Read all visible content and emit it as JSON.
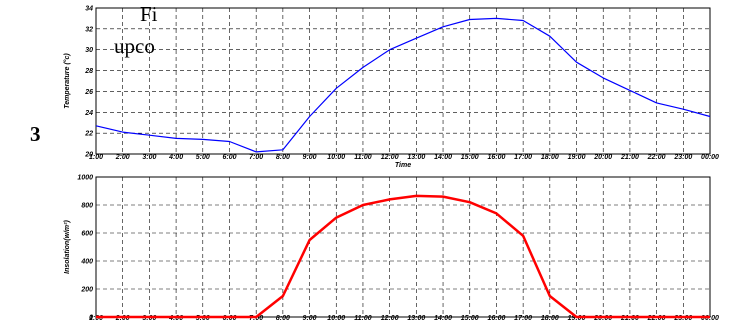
{
  "background_text": [
    "Fi",
    "upco",
    "3"
  ],
  "chart_data": [
    {
      "type": "line",
      "xlabel": "Time",
      "ylabel": "Temperature (°c)",
      "categories": [
        "1:00",
        "2:00",
        "3:00",
        "4:00",
        "5:00",
        "6:00",
        "7:00",
        "8:00",
        "9:00",
        "10:00",
        "11:00",
        "12:00",
        "13:00",
        "14:00",
        "15:00",
        "16:00",
        "17:00",
        "18:00",
        "19:00",
        "20:00",
        "21:00",
        "22:00",
        "23:00",
        "00:00"
      ],
      "ylim": [
        20,
        34
      ],
      "yticks": [
        20,
        22,
        24,
        26,
        28,
        30,
        32,
        34
      ],
      "grid": true,
      "series": [
        {
          "color": "#0000ff",
          "values": [
            22.7,
            22.1,
            21.8,
            21.5,
            21.4,
            21.2,
            20.2,
            20.4,
            23.6,
            26.3,
            28.3,
            30.0,
            31.1,
            32.2,
            32.9,
            33.0,
            32.8,
            31.3,
            28.8,
            27.3,
            26.1,
            24.9,
            24.3,
            23.6
          ]
        }
      ]
    },
    {
      "type": "line",
      "xlabel": "",
      "ylabel": "Insolation(w/m²)",
      "categories": [
        "1:00",
        "2:00",
        "3:00",
        "4:00",
        "5:00",
        "6:00",
        "7:00",
        "8:00",
        "9:00",
        "10:00",
        "11:00",
        "12:00",
        "13:00",
        "14:00",
        "15:00",
        "16:00",
        "17:00",
        "18:00",
        "19:00",
        "20:00",
        "21:00",
        "22:00",
        "23:00",
        "00:00"
      ],
      "ylim": [
        0,
        1000
      ],
      "yticks": [
        0,
        200,
        400,
        600,
        800,
        1000
      ],
      "grid": true,
      "series": [
        {
          "color": "#ff0000",
          "values": [
            0,
            0,
            0,
            0,
            0,
            0,
            0,
            150,
            550,
            710,
            800,
            840,
            865,
            860,
            820,
            740,
            580,
            150,
            0,
            0,
            0,
            0,
            0,
            0
          ]
        }
      ]
    }
  ]
}
